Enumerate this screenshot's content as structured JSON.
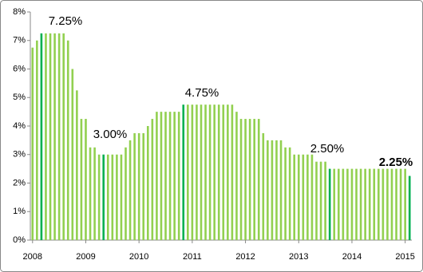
{
  "chart_data": {
    "type": "bar",
    "categories": [
      "2008",
      null,
      null,
      null,
      null,
      null,
      null,
      null,
      null,
      null,
      null,
      null,
      "2009",
      null,
      null,
      null,
      null,
      null,
      null,
      null,
      null,
      null,
      null,
      null,
      "2010",
      null,
      null,
      null,
      null,
      null,
      null,
      null,
      null,
      null,
      null,
      null,
      "2011",
      null,
      null,
      null,
      null,
      null,
      null,
      null,
      null,
      null,
      null,
      null,
      "2012",
      null,
      null,
      null,
      null,
      null,
      null,
      null,
      null,
      null,
      null,
      null,
      "2013",
      null,
      null,
      null,
      null,
      null,
      null,
      null,
      null,
      null,
      null,
      null,
      "2014",
      null,
      null,
      null,
      null,
      null,
      null,
      null,
      null,
      null,
      null,
      null,
      "2015",
      null
    ],
    "values": [
      6.75,
      7.0,
      7.25,
      7.25,
      7.25,
      7.25,
      7.25,
      7.25,
      7.0,
      6.0,
      5.25,
      4.25,
      4.25,
      3.25,
      3.25,
      3.0,
      3.0,
      3.0,
      3.0,
      3.0,
      3.0,
      3.25,
      3.5,
      3.75,
      3.75,
      3.75,
      4.0,
      4.25,
      4.5,
      4.5,
      4.5,
      4.5,
      4.5,
      4.5,
      4.75,
      4.75,
      4.75,
      4.75,
      4.75,
      4.75,
      4.75,
      4.75,
      4.75,
      4.75,
      4.75,
      4.75,
      4.5,
      4.25,
      4.25,
      4.25,
      4.25,
      4.25,
      3.75,
      3.5,
      3.5,
      3.5,
      3.5,
      3.25,
      3.25,
      3.0,
      3.0,
      3.0,
      3.0,
      3.0,
      2.75,
      2.75,
      2.75,
      2.5,
      2.5,
      2.5,
      2.5,
      2.5,
      2.5,
      2.5,
      2.5,
      2.5,
      2.5,
      2.5,
      2.5,
      2.5,
      2.5,
      2.5,
      2.5,
      2.5,
      2.5,
      2.25
    ],
    "color": "#92d050",
    "highlight_color": "#00b050",
    "highlight": [
      2,
      16,
      34,
      67,
      85
    ],
    "annotations": [
      "7.25%",
      "3.00%",
      "4.75%",
      "2.50%",
      "2.25%"
    ],
    "ylim": [
      0,
      8
    ],
    "yticks": [
      {
        "value": 0,
        "label": "0%"
      },
      {
        "value": 1,
        "label": "1%"
      },
      {
        "value": 2,
        "label": "2%"
      },
      {
        "value": 3,
        "label": "3%"
      },
      {
        "value": 4,
        "label": "4%"
      },
      {
        "value": 5,
        "label": "5%"
      },
      {
        "value": 6,
        "label": "6%"
      },
      {
        "value": 7,
        "label": "7%"
      },
      {
        "value": 8,
        "label": "8%"
      }
    ],
    "grid": false
  }
}
